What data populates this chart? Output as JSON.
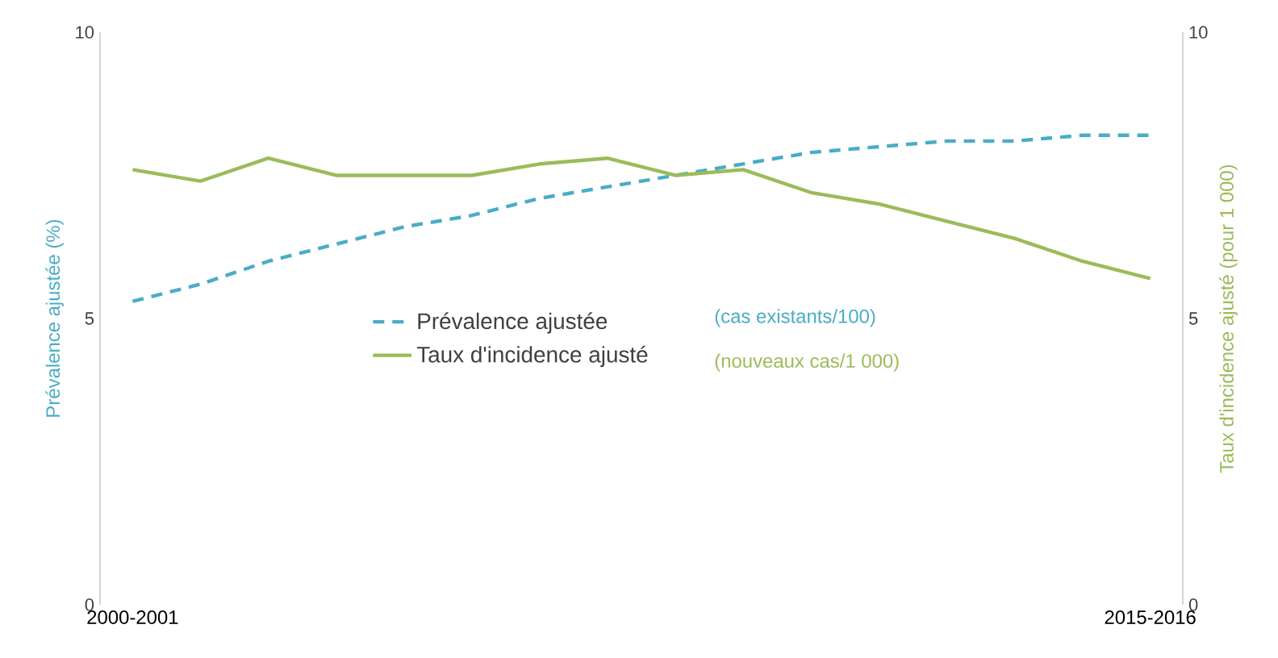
{
  "chart_data": {
    "type": "line",
    "categories": [
      "2000-2001",
      null,
      null,
      null,
      null,
      null,
      null,
      null,
      null,
      null,
      null,
      null,
      null,
      null,
      null,
      "2015-2016"
    ],
    "series": [
      {
        "name": "Prévalence ajustée",
        "color": "#4bacc6",
        "line_style": "dashed",
        "values": [
          5.3,
          5.6,
          6.0,
          6.3,
          6.6,
          6.8,
          7.1,
          7.3,
          7.5,
          7.7,
          7.9,
          8.0,
          8.1,
          8.1,
          8.2,
          8.2
        ]
      },
      {
        "name": "Taux d'incidence ajusté",
        "color": "#9bbb59",
        "line_style": "solid",
        "axis": "y2",
        "values": [
          7.6,
          7.4,
          7.8,
          7.5,
          7.5,
          7.5,
          7.7,
          7.8,
          7.5,
          7.6,
          7.2,
          7.0,
          6.7,
          6.4,
          6.0,
          5.7
        ]
      }
    ],
    "ylabel": "Prévalence ajustée (%)",
    "y2label": "Taux d'incidence ajusté (pour 1 000)",
    "ylim": [
      0,
      10
    ],
    "yticks": [
      0,
      5,
      10
    ],
    "y2lim": [
      0,
      10
    ],
    "y2ticks": [
      0,
      5,
      10
    ],
    "annotations": [
      "(cas existants/100)",
      "(nouveaux cas/1 000)"
    ],
    "legend": "center left",
    "grid": false,
    "marker": "none"
  }
}
